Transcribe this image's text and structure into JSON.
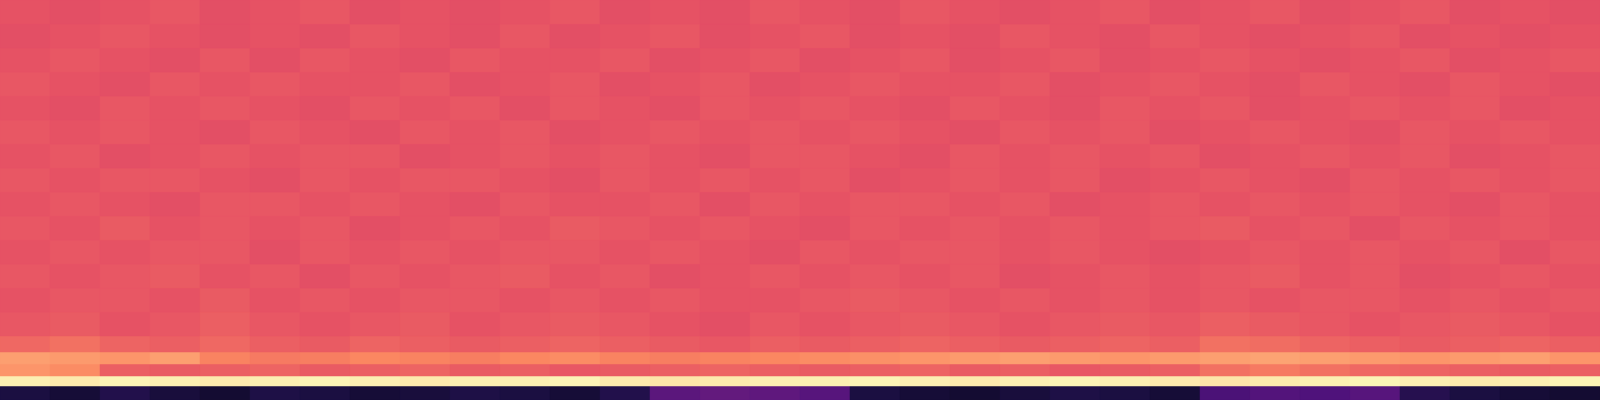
{
  "chart_data": {
    "type": "heatmap",
    "color": "magma",
    "tick_labels": false,
    "zlim": [
      0,
      1
    ],
    "y_bins": [
      0,
      3.5,
      6,
      9,
      12,
      16,
      22,
      28,
      34,
      40,
      46,
      52,
      58,
      64,
      70,
      76,
      82,
      88,
      94,
      100
    ],
    "z": [
      [
        0.12,
        0.1,
        0.14,
        0.11,
        0.09,
        0.13,
        0.12,
        0.1,
        0.11,
        0.13,
        0.12,
        0.1,
        0.14,
        0.28,
        0.3,
        0.29,
        0.27,
        0.12,
        0.1,
        0.09,
        0.11,
        0.13,
        0.12,
        0.1,
        0.24,
        0.26,
        0.25,
        0.27,
        0.15,
        0.12,
        0.1,
        0.09
      ],
      [
        0.97,
        0.96,
        0.98,
        0.97,
        0.96,
        0.97,
        0.98,
        0.97,
        0.96,
        0.97,
        0.97,
        0.98,
        0.96,
        0.95,
        0.96,
        0.97,
        0.97,
        0.98,
        0.97,
        0.96,
        0.97,
        0.98,
        0.97,
        0.96,
        0.95,
        0.96,
        0.97,
        0.98,
        0.97,
        0.96,
        0.97,
        0.98
      ],
      [
        0.78,
        0.76,
        0.66,
        0.65,
        0.66,
        0.67,
        0.65,
        0.66,
        0.67,
        0.65,
        0.66,
        0.64,
        0.65,
        0.66,
        0.67,
        0.66,
        0.65,
        0.66,
        0.67,
        0.65,
        0.66,
        0.64,
        0.65,
        0.66,
        0.7,
        0.72,
        0.7,
        0.68,
        0.67,
        0.66,
        0.65,
        0.66
      ],
      [
        0.8,
        0.79,
        0.78,
        0.8,
        0.74,
        0.72,
        0.73,
        0.75,
        0.74,
        0.73,
        0.75,
        0.76,
        0.74,
        0.73,
        0.74,
        0.75,
        0.76,
        0.77,
        0.78,
        0.79,
        0.8,
        0.79,
        0.78,
        0.79,
        0.8,
        0.81,
        0.8,
        0.79,
        0.78,
        0.79,
        0.8,
        0.78
      ],
      [
        0.68,
        0.7,
        0.67,
        0.66,
        0.68,
        0.66,
        0.65,
        0.67,
        0.66,
        0.65,
        0.66,
        0.67,
        0.66,
        0.65,
        0.64,
        0.66,
        0.65,
        0.66,
        0.67,
        0.66,
        0.65,
        0.66,
        0.67,
        0.66,
        0.7,
        0.69,
        0.67,
        0.66,
        0.65,
        0.66,
        0.67,
        0.66
      ],
      [
        0.64,
        0.65,
        0.63,
        0.64,
        0.66,
        0.64,
        0.63,
        0.64,
        0.65,
        0.63,
        0.64,
        0.65,
        0.64,
        0.63,
        0.62,
        0.64,
        0.63,
        0.64,
        0.65,
        0.64,
        0.63,
        0.64,
        0.65,
        0.64,
        0.66,
        0.65,
        0.64,
        0.63,
        0.64,
        0.65,
        0.64,
        0.63
      ],
      [
        0.63,
        0.64,
        0.64,
        0.63,
        0.65,
        0.63,
        0.64,
        0.63,
        0.64,
        0.64,
        0.63,
        0.64,
        0.63,
        0.64,
        0.63,
        0.63,
        0.64,
        0.65,
        0.64,
        0.63,
        0.64,
        0.63,
        0.64,
        0.63,
        0.64,
        0.63,
        0.64,
        0.64,
        0.63,
        0.64,
        0.63,
        0.64
      ],
      [
        0.64,
        0.63,
        0.64,
        0.65,
        0.63,
        0.64,
        0.62,
        0.64,
        0.63,
        0.64,
        0.65,
        0.63,
        0.64,
        0.62,
        0.63,
        0.64,
        0.63,
        0.64,
        0.63,
        0.64,
        0.62,
        0.63,
        0.64,
        0.63,
        0.64,
        0.65,
        0.63,
        0.64,
        0.62,
        0.63,
        0.64,
        0.63
      ],
      [
        0.63,
        0.64,
        0.63,
        0.64,
        0.64,
        0.62,
        0.64,
        0.63,
        0.64,
        0.63,
        0.64,
        0.64,
        0.63,
        0.64,
        0.63,
        0.62,
        0.64,
        0.63,
        0.64,
        0.64,
        0.63,
        0.64,
        0.63,
        0.62,
        0.63,
        0.64,
        0.63,
        0.64,
        0.63,
        0.64,
        0.62,
        0.64
      ],
      [
        0.64,
        0.63,
        0.65,
        0.63,
        0.64,
        0.63,
        0.64,
        0.62,
        0.63,
        0.64,
        0.63,
        0.65,
        0.64,
        0.63,
        0.64,
        0.63,
        0.62,
        0.64,
        0.63,
        0.64,
        0.63,
        0.64,
        0.63,
        0.64,
        0.65,
        0.63,
        0.64,
        0.62,
        0.64,
        0.63,
        0.64,
        0.63
      ],
      [
        0.63,
        0.64,
        0.63,
        0.62,
        0.64,
        0.64,
        0.63,
        0.64,
        0.63,
        0.62,
        0.64,
        0.63,
        0.63,
        0.64,
        0.62,
        0.64,
        0.63,
        0.64,
        0.64,
        0.63,
        0.64,
        0.62,
        0.63,
        0.64,
        0.63,
        0.64,
        0.63,
        0.64,
        0.63,
        0.62,
        0.64,
        0.63
      ],
      [
        0.64,
        0.63,
        0.64,
        0.64,
        0.63,
        0.62,
        0.64,
        0.63,
        0.64,
        0.64,
        0.63,
        0.62,
        0.64,
        0.63,
        0.64,
        0.63,
        0.64,
        0.62,
        0.63,
        0.64,
        0.63,
        0.64,
        0.62,
        0.63,
        0.64,
        0.63,
        0.62,
        0.64,
        0.63,
        0.64,
        0.63,
        0.64
      ],
      [
        0.63,
        0.64,
        0.62,
        0.63,
        0.64,
        0.63,
        0.64,
        0.64,
        0.62,
        0.63,
        0.64,
        0.63,
        0.64,
        0.63,
        0.62,
        0.64,
        0.64,
        0.63,
        0.62,
        0.64,
        0.63,
        0.64,
        0.63,
        0.64,
        0.62,
        0.63,
        0.64,
        0.63,
        0.64,
        0.62,
        0.63,
        0.64
      ],
      [
        0.64,
        0.63,
        0.64,
        0.63,
        0.62,
        0.64,
        0.63,
        0.62,
        0.64,
        0.63,
        0.64,
        0.62,
        0.63,
        0.64,
        0.63,
        0.64,
        0.63,
        0.64,
        0.63,
        0.62,
        0.64,
        0.63,
        0.64,
        0.62,
        0.63,
        0.64,
        0.63,
        0.62,
        0.64,
        0.63,
        0.64,
        0.63
      ],
      [
        0.63,
        0.62,
        0.64,
        0.63,
        0.64,
        0.63,
        0.62,
        0.64,
        0.63,
        0.64,
        0.62,
        0.64,
        0.63,
        0.62,
        0.64,
        0.63,
        0.64,
        0.63,
        0.62,
        0.64,
        0.63,
        0.62,
        0.64,
        0.63,
        0.64,
        0.62,
        0.63,
        0.64,
        0.63,
        0.64,
        0.62,
        0.63
      ],
      [
        0.64,
        0.63,
        0.62,
        0.64,
        0.63,
        0.64,
        0.63,
        0.63,
        0.64,
        0.62,
        0.63,
        0.64,
        0.62,
        0.63,
        0.64,
        0.62,
        0.63,
        0.64,
        0.63,
        0.63,
        0.64,
        0.62,
        0.63,
        0.64,
        0.63,
        0.62,
        0.64,
        0.63,
        0.62,
        0.64,
        0.63,
        0.62
      ],
      [
        0.63,
        0.64,
        0.63,
        0.62,
        0.64,
        0.62,
        0.64,
        0.63,
        0.62,
        0.64,
        0.63,
        0.63,
        0.64,
        0.62,
        0.63,
        0.64,
        0.62,
        0.63,
        0.64,
        0.62,
        0.63,
        0.64,
        0.62,
        0.63,
        0.64,
        0.63,
        0.62,
        0.63,
        0.64,
        0.62,
        0.63,
        0.64
      ],
      [
        0.62,
        0.63,
        0.64,
        0.63,
        0.62,
        0.63,
        0.62,
        0.64,
        0.63,
        0.62,
        0.64,
        0.62,
        0.63,
        0.64,
        0.62,
        0.63,
        0.64,
        0.62,
        0.63,
        0.62,
        0.64,
        0.63,
        0.62,
        0.64,
        0.63,
        0.62,
        0.63,
        0.64,
        0.62,
        0.63,
        0.62,
        0.63
      ],
      [
        0.63,
        0.62,
        0.63,
        0.64,
        0.62,
        0.63,
        0.64,
        0.62,
        0.63,
        0.62,
        0.63,
        0.64,
        0.62,
        0.63,
        0.62,
        0.64,
        0.63,
        0.62,
        0.64,
        0.63,
        0.62,
        0.63,
        0.64,
        0.62,
        0.63,
        0.64,
        0.62,
        0.63,
        0.64,
        0.62,
        0.63,
        0.62
      ]
    ]
  }
}
